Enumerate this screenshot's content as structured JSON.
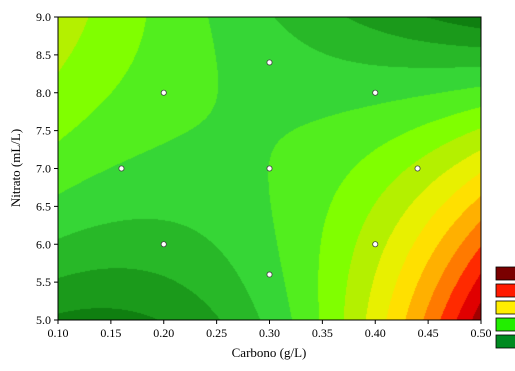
{
  "chart_data": {
    "type": "heatmap",
    "subtype": "contour",
    "title": "",
    "xlabel": "Carbono (g/L)",
    "ylabel": "Nitrato (mL/L)",
    "xlim": [
      0.1,
      0.5
    ],
    "ylim": [
      5.0,
      9.0
    ],
    "x_ticks": [
      "0.10",
      "0.15",
      "0.20",
      "0.25",
      "0.30",
      "0.35",
      "0.40",
      "0.45",
      "0.50"
    ],
    "y_ticks": [
      "5.0",
      "5.5",
      "6.0",
      "6.5",
      "7.0",
      "7.5",
      "8.0",
      "8.5",
      "9.0"
    ],
    "grid": false,
    "legend": {
      "placement": "right",
      "entries": 5,
      "labels_visible": false
    },
    "colorscale": [
      "#006400",
      "#0f7f10",
      "#1b9a1b",
      "#28b828",
      "#36d636",
      "#52ee1e",
      "#80ff00",
      "#b4f000",
      "#e8f000",
      "#ffe000",
      "#ffb000",
      "#ff7a00",
      "#ff2a00",
      "#e00000",
      "#a00000",
      "#700000"
    ],
    "legend_colors": [
      "#7a0000",
      "#ff1a00",
      "#ffee00",
      "#22ee00",
      "#008a20"
    ],
    "design_points": [
      {
        "x": 0.16,
        "y": 7.0
      },
      {
        "x": 0.2,
        "y": 8.0
      },
      {
        "x": 0.2,
        "y": 6.0
      },
      {
        "x": 0.3,
        "y": 8.4
      },
      {
        "x": 0.3,
        "y": 7.0
      },
      {
        "x": 0.3,
        "y": 5.6
      },
      {
        "x": 0.4,
        "y": 8.0
      },
      {
        "x": 0.4,
        "y": 6.0
      },
      {
        "x": 0.44,
        "y": 7.0
      }
    ]
  }
}
